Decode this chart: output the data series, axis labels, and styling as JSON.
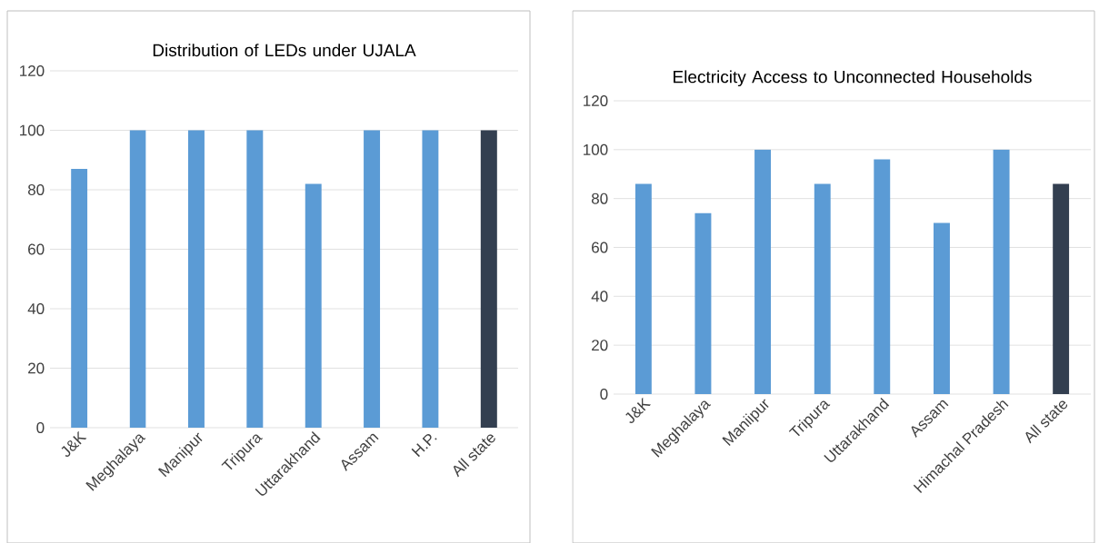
{
  "chart_data": [
    {
      "type": "bar",
      "title": "Distribution of LEDs under UJALA",
      "categories": [
        "J&K",
        "Meghalaya",
        "Manipur",
        "Tripura",
        "Uttarakhand",
        "Assam",
        "H.P.",
        "All state"
      ],
      "values": [
        87,
        100,
        100,
        100,
        82,
        100,
        100,
        100
      ],
      "colors": [
        "#5b9bd5",
        "#5b9bd5",
        "#5b9bd5",
        "#5b9bd5",
        "#5b9bd5",
        "#5b9bd5",
        "#5b9bd5",
        "#333f50"
      ],
      "ylim": [
        0,
        120
      ],
      "yticks": [
        0,
        20,
        40,
        60,
        80,
        100,
        120
      ],
      "grid": "y"
    },
    {
      "type": "bar",
      "title": "Electricity Access to Unconnected Households",
      "categories": [
        "J&K",
        "Meghalaya",
        "Maniipur",
        "Tripura",
        "Uttarakhand",
        "Assam",
        "Himachal Pradesh",
        "All state"
      ],
      "values": [
        86,
        74,
        100,
        86,
        96,
        70,
        100,
        86
      ],
      "colors": [
        "#5b9bd5",
        "#5b9bd5",
        "#5b9bd5",
        "#5b9bd5",
        "#5b9bd5",
        "#5b9bd5",
        "#5b9bd5",
        "#333f50"
      ],
      "ylim": [
        0,
        120
      ],
      "yticks": [
        0,
        20,
        40,
        60,
        80,
        100,
        120
      ],
      "grid": "y"
    }
  ]
}
